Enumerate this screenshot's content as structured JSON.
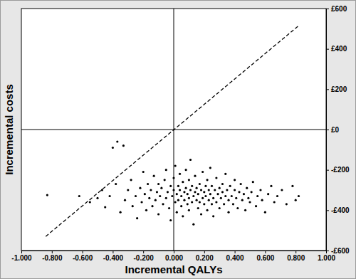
{
  "chart_data": {
    "type": "scatter",
    "x_label": "Incremental QALYs",
    "y_label": "Incremental costs",
    "xlim": [
      -1,
      1
    ],
    "ylim": [
      -600,
      600
    ],
    "xticks": [
      {
        "value": -1,
        "label": "-1.000"
      },
      {
        "value": -0.8,
        "label": "-0.800"
      },
      {
        "value": -0.6,
        "label": "-0.600"
      },
      {
        "value": -0.4,
        "label": "-0.400"
      },
      {
        "value": -0.2,
        "label": "-0.200"
      },
      {
        "value": 0,
        "label": "0.000"
      },
      {
        "value": 0.2,
        "label": "0.200"
      },
      {
        "value": 0.4,
        "label": "0.400"
      },
      {
        "value": 0.6,
        "label": "0.600"
      },
      {
        "value": 0.8,
        "label": "0.800"
      },
      {
        "value": 1,
        "label": "1.000"
      }
    ],
    "yticks": [
      {
        "value": 600,
        "label": "£600"
      },
      {
        "value": 400,
        "label": "£400"
      },
      {
        "value": 200,
        "label": "£200"
      },
      {
        "value": 0,
        "label": "£0"
      },
      {
        "value": -200,
        "label": "-£200"
      },
      {
        "value": -400,
        "label": "-£400"
      },
      {
        "value": -600,
        "label": "-£600"
      }
    ],
    "grid": false,
    "series": [
      {
        "type": "scatter",
        "color": "#000000",
        "marker": "circle",
        "x": [
          -0.83,
          -0.62,
          -0.55,
          -0.5,
          -0.47,
          -0.45,
          -0.4,
          -0.37,
          -0.33,
          -0.42,
          -0.38,
          -0.35,
          -0.32,
          -0.3,
          -0.28,
          -0.27,
          -0.25,
          -0.24,
          -0.22,
          -0.21,
          -0.2,
          -0.19,
          -0.18,
          -0.17,
          -0.16,
          -0.15,
          -0.14,
          -0.13,
          -0.12,
          -0.11,
          -0.1,
          -0.1,
          -0.09,
          -0.08,
          -0.07,
          -0.06,
          -0.05,
          -0.05,
          -0.04,
          -0.03,
          -0.02,
          -0.02,
          -0.01,
          0.0,
          0.0,
          0.01,
          0.01,
          0.02,
          0.02,
          0.03,
          0.03,
          0.04,
          0.04,
          0.05,
          0.05,
          0.06,
          0.06,
          0.07,
          0.07,
          0.08,
          0.08,
          0.09,
          0.09,
          0.1,
          0.1,
          0.1,
          0.11,
          0.11,
          0.12,
          0.12,
          0.13,
          0.13,
          0.14,
          0.14,
          0.15,
          0.15,
          0.16,
          0.16,
          0.17,
          0.17,
          0.18,
          0.18,
          0.19,
          0.19,
          0.2,
          0.2,
          0.21,
          0.21,
          0.22,
          0.22,
          0.23,
          0.23,
          0.24,
          0.24,
          0.25,
          0.25,
          0.26,
          0.26,
          0.27,
          0.28,
          0.28,
          0.29,
          0.3,
          0.3,
          0.31,
          0.32,
          0.32,
          0.33,
          0.34,
          0.34,
          0.35,
          0.36,
          0.36,
          0.37,
          0.38,
          0.39,
          0.4,
          0.4,
          0.41,
          0.42,
          0.43,
          0.44,
          0.45,
          0.46,
          0.47,
          0.48,
          0.49,
          0.5,
          0.51,
          0.52,
          0.54,
          0.55,
          0.57,
          0.58,
          0.6,
          0.62,
          0.64,
          0.66,
          0.68,
          0.71,
          0.74,
          0.78,
          0.8,
          0.82
        ],
        "values": [
          -325,
          -330,
          -360,
          -340,
          -300,
          -385,
          -90,
          -60,
          -80,
          -330,
          -270,
          -410,
          -350,
          -300,
          -250,
          -380,
          -330,
          -440,
          -290,
          -360,
          -210,
          -320,
          -400,
          -270,
          -340,
          -300,
          -380,
          -230,
          -350,
          -310,
          -270,
          -420,
          -330,
          -290,
          -370,
          -250,
          -340,
          -200,
          -310,
          -390,
          -280,
          -450,
          -330,
          -300,
          -240,
          -360,
          -180,
          -320,
          -410,
          -280,
          -350,
          -220,
          -300,
          -380,
          -330,
          -260,
          -430,
          -310,
          -350,
          -290,
          -200,
          -370,
          -320,
          -250,
          -340,
          -400,
          -300,
          -150,
          -360,
          -280,
          -330,
          -470,
          -310,
          -230,
          -350,
          -290,
          -390,
          -320,
          -270,
          -360,
          -300,
          -420,
          -340,
          -210,
          -310,
          -370,
          -280,
          -330,
          -250,
          -400,
          -350,
          -300,
          -320,
          -190,
          -370,
          -280,
          -340,
          -430,
          -300,
          -360,
          -240,
          -320,
          -290,
          -390,
          -340,
          -270,
          -310,
          -370,
          -330,
          -220,
          -300,
          -410,
          -350,
          -280,
          -330,
          -370,
          -300,
          -250,
          -340,
          -390,
          -310,
          -270,
          -350,
          -320,
          -400,
          -290,
          -340,
          -360,
          -310,
          -260,
          -380,
          -330,
          -300,
          -350,
          -410,
          -320,
          -280,
          -360,
          -330,
          -300,
          -370,
          -280,
          -350,
          -330
        ]
      },
      {
        "type": "line",
        "color": "#000000",
        "line_style": "dashed",
        "x": [
          -0.84,
          0.82
        ],
        "values": [
          -530,
          515
        ]
      },
      {
        "type": "line",
        "color": "#000000",
        "line_style": "solid",
        "x": [
          -1,
          1
        ],
        "values": [
          0,
          0
        ]
      },
      {
        "type": "line",
        "color": "#000000",
        "line_style": "solid",
        "x": [
          0,
          0
        ],
        "values": [
          -600,
          600
        ]
      }
    ]
  }
}
